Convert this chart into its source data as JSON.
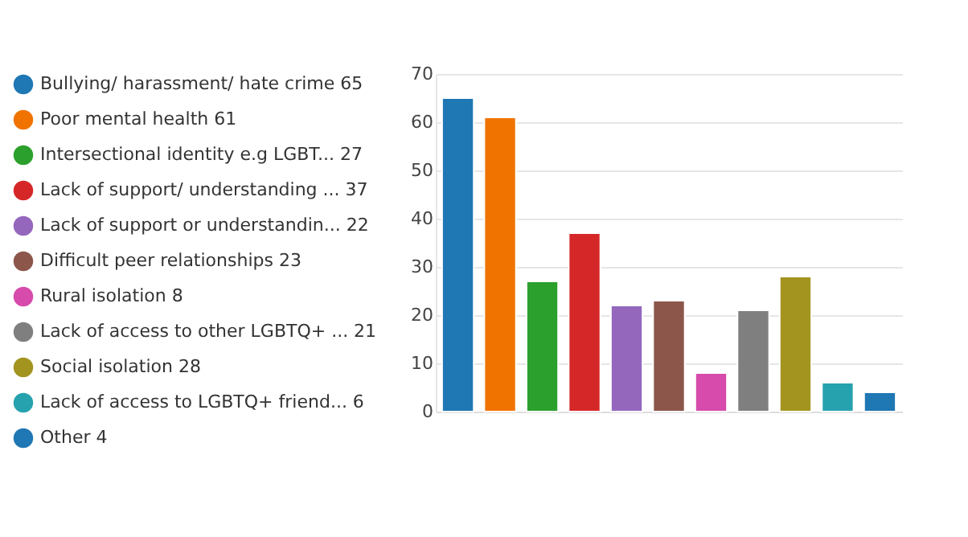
{
  "chart_data": {
    "type": "bar",
    "categories": [
      null,
      null,
      null,
      null,
      null,
      null,
      null,
      null,
      null,
      null,
      null
    ],
    "series": [
      {
        "name": "Bullying/ harassment/ hate crime 65",
        "color": "#1f77b4",
        "values": [
          65,
          null,
          null,
          null,
          null,
          null,
          null,
          null,
          null,
          null,
          null
        ]
      },
      {
        "name": "Poor mental health 61",
        "color": "#f07300",
        "values": [
          null,
          61,
          null,
          null,
          null,
          null,
          null,
          null,
          null,
          null,
          null
        ]
      },
      {
        "name": "Intersectional identity e.g LGBT... 27",
        "color": "#2ca02c",
        "values": [
          null,
          null,
          27,
          null,
          null,
          null,
          null,
          null,
          null,
          null,
          null
        ]
      },
      {
        "name": "Lack of support/ understanding ... 37",
        "color": "#d62728",
        "values": [
          null,
          null,
          null,
          37,
          null,
          null,
          null,
          null,
          null,
          null,
          null
        ]
      },
      {
        "name": "Lack of support or understandin... 22",
        "color": "#9467bd",
        "values": [
          null,
          null,
          null,
          null,
          22,
          null,
          null,
          null,
          null,
          null,
          null
        ]
      },
      {
        "name": "Difficult peer relationships 23",
        "color": "#8c564b",
        "values": [
          null,
          null,
          null,
          null,
          null,
          23,
          null,
          null,
          null,
          null,
          null
        ]
      },
      {
        "name": "Rural isolation 8",
        "color": "#d64bab",
        "values": [
          null,
          null,
          null,
          null,
          null,
          null,
          8,
          null,
          null,
          null,
          null
        ]
      },
      {
        "name": "Lack of access to other LGBTQ+ ... 21",
        "color": "#7f7f7f",
        "values": [
          null,
          null,
          null,
          null,
          null,
          null,
          null,
          21,
          null,
          null,
          null
        ]
      },
      {
        "name": "Social isolation 28",
        "color": "#a39420",
        "values": [
          null,
          null,
          null,
          null,
          null,
          null,
          null,
          null,
          28,
          null,
          null
        ]
      },
      {
        "name": "Lack of access to LGBTQ+ friend... 6",
        "color": "#26a2ae",
        "values": [
          null,
          null,
          null,
          null,
          null,
          null,
          null,
          null,
          null,
          6,
          null
        ]
      },
      {
        "name": "Other 4",
        "color": "#1f77b4",
        "values": [
          null,
          null,
          null,
          null,
          null,
          null,
          null,
          null,
          null,
          null,
          4
        ]
      }
    ],
    "ylim": [
      0,
      70
    ],
    "yticks": [
      0,
      10,
      20,
      30,
      40,
      50,
      60,
      70
    ],
    "grid": "y",
    "legend": "left",
    "tick_labels": "y"
  }
}
